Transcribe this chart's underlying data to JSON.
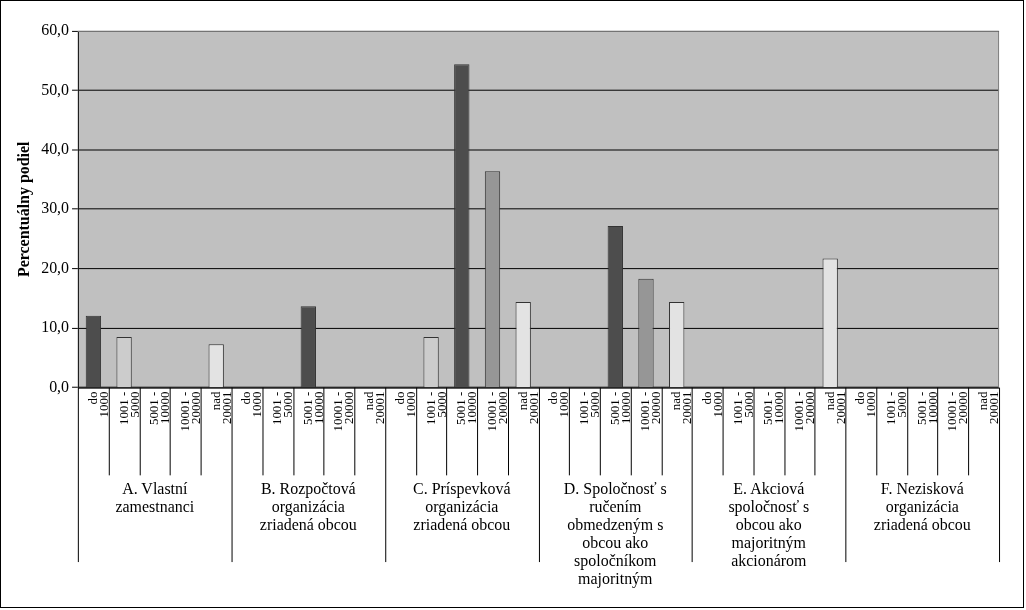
{
  "chart_data": {
    "type": "bar",
    "ylabel": "Percentuálny podiel",
    "categories": [
      "do 1000",
      "1001 - 5000",
      "5001 - 10000",
      "10001 - 20000",
      "nad 20001",
      "do 1000",
      "1001 - 5000",
      "5001 - 10000",
      "10001 - 20000",
      "nad 20001",
      "do 1000",
      "1001 - 5000",
      "5001 - 10000",
      "10001 - 20000",
      "nad 20001",
      "do 1000",
      "1001 - 5000",
      "5001 - 10000",
      "10001 - 20000",
      "nad 20001",
      "do 1000",
      "1001 - 5000",
      "5001 - 10000",
      "10001 - 20000",
      "nad 20001",
      "do 1000",
      "1001 - 5000",
      "5001 - 10000",
      "10001 - 20000",
      "nad 20001"
    ],
    "values": [
      12.1,
      8.5,
      0,
      0,
      7.3,
      0,
      0,
      13.7,
      0,
      0,
      0,
      8.5,
      54.4,
      36.4,
      14.4,
      0,
      0,
      27.2,
      18.3,
      14.4,
      0,
      0,
      0,
      0,
      21.7,
      0,
      0,
      0,
      0,
      0
    ],
    "colors": [
      "#4d4d4d",
      "#cccccc",
      "#cccccc",
      "#cccccc",
      "#e3e3e3",
      "#4d4d4d",
      "#cccccc",
      "#4d4d4d",
      "#969696",
      "#e3e3e3",
      "#4d4d4d",
      "#cccccc",
      "#4d4d4d",
      "#969696",
      "#e3e3e3",
      "#4d4d4d",
      "#cccccc",
      "#4d4d4d",
      "#969696",
      "#e3e3e3",
      "#4d4d4d",
      "#cccccc",
      "#4d4d4d",
      "#969696",
      "#e3e3e3",
      "#4d4d4d",
      "#cccccc",
      "#4d4d4d",
      "#969696",
      "#e3e3e3"
    ],
    "ylim": [
      0,
      60
    ],
    "yticks": [
      {
        "value": 0,
        "label": "0,0"
      },
      {
        "value": 10,
        "label": "10,0"
      },
      {
        "value": 20,
        "label": "20,0"
      },
      {
        "value": 30,
        "label": "30,0"
      },
      {
        "value": 40,
        "label": "40,0"
      },
      {
        "value": 50,
        "label": "50,0"
      },
      {
        "value": 60,
        "label": "60,0"
      }
    ],
    "grid": "y",
    "legend": false,
    "annotations": [
      "A. Vlastní zamestnanci",
      "B. Rozpočtová organizácia zriadená obcou",
      "C. Príspevková organizácia zriadená obcou",
      "D. Spoločnosť s ručením obmedzeným s obcou ako spoločníkom majoritným",
      "E. Akciová spoločnosť s obcou ako majoritným akcionárom",
      "F. Nezisková organizácia zriadená obcou"
    ]
  }
}
